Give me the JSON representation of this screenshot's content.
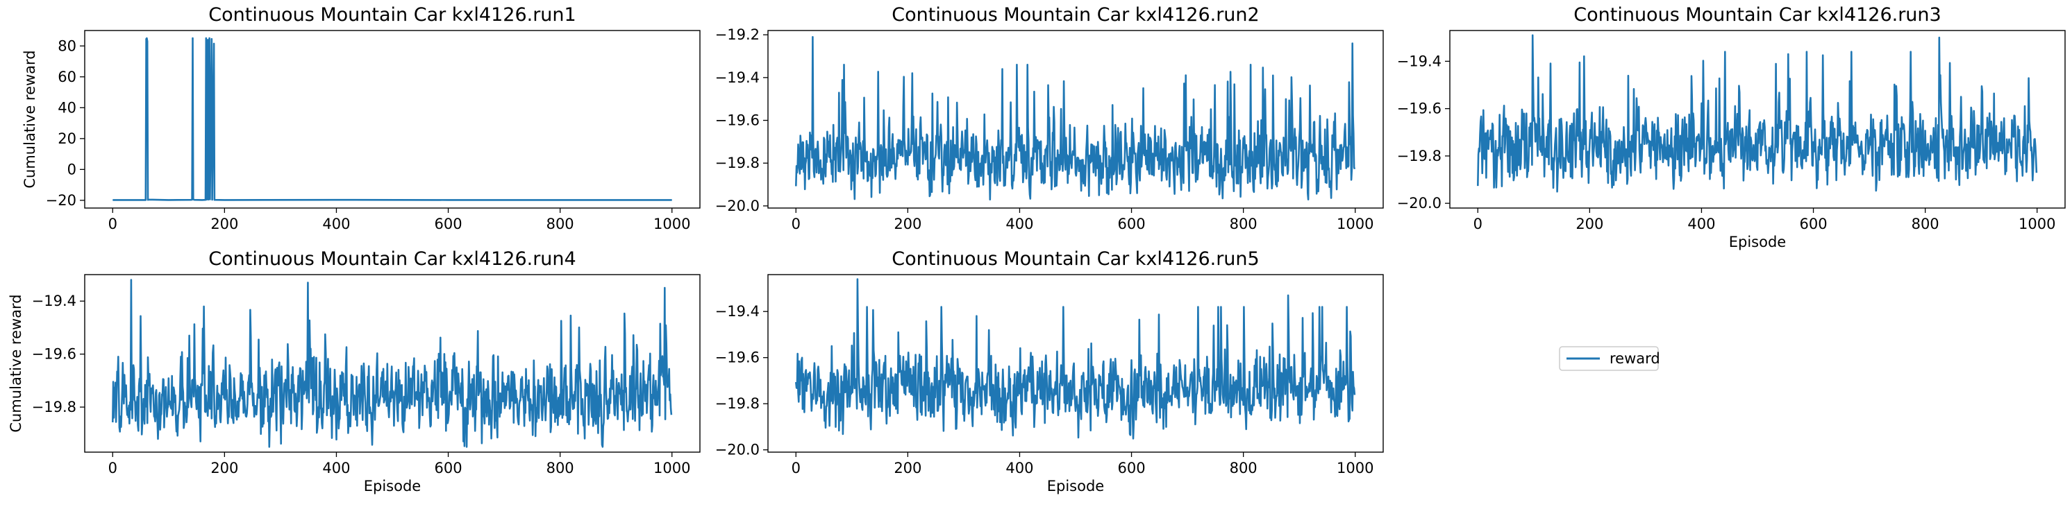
{
  "chart_data": [
    {
      "type": "line",
      "title": "Continuous Mountain Car kxl4126.run1",
      "xlabel": "",
      "ylabel": "Cumulative reward",
      "xlim": [
        -50,
        1050
      ],
      "ylim": [
        -25,
        90
      ],
      "xticks": [
        0,
        200,
        400,
        600,
        800,
        1000
      ],
      "yticks": [
        -20,
        0,
        20,
        40,
        60,
        80
      ],
      "ytick_labels": [
        "−20",
        "0",
        "20",
        "40",
        "60",
        "80"
      ],
      "series": [
        {
          "points": [
            [
              0,
              -19.8
            ],
            [
              50,
              -19.8
            ],
            [
              59,
              -19.8
            ],
            [
              60,
              84.5
            ],
            [
              61,
              85
            ],
            [
              62,
              83
            ],
            [
              63,
              -19.7
            ],
            [
              64,
              -19.5
            ],
            [
              100,
              -19.8
            ],
            [
              140,
              -19.7
            ],
            [
              142,
              -19.6
            ],
            [
              143,
              85
            ],
            [
              144,
              -19.4
            ],
            [
              146,
              -19.7
            ],
            [
              160,
              -19.8
            ],
            [
              166,
              -19.7
            ],
            [
              167,
              85
            ],
            [
              168,
              -19.5
            ],
            [
              170,
              84
            ],
            [
              171,
              -19.5
            ],
            [
              173,
              85
            ],
            [
              174,
              -19.4
            ],
            [
              177,
              84.5
            ],
            [
              178,
              -19.6
            ],
            [
              181,
              81.5
            ],
            [
              182,
              -19.7
            ],
            [
              200,
              -19.8
            ],
            [
              400,
              -19.7
            ],
            [
              600,
              -19.8
            ],
            [
              800,
              -19.8
            ],
            [
              1000,
              -19.8
            ]
          ]
        }
      ]
    },
    {
      "type": "line",
      "title": "Continuous Mountain Car kxl4126.run2",
      "xlabel": "",
      "ylabel": "",
      "xlim": [
        -50,
        1050
      ],
      "ylim": [
        -20.01,
        -19.18
      ],
      "xticks": [
        0,
        200,
        400,
        600,
        800,
        1000
      ],
      "yticks": [
        -20.0,
        -19.8,
        -19.6,
        -19.4,
        -19.2
      ],
      "ytick_labels": [
        "−20.0",
        "−19.8",
        "−19.6",
        "−19.4",
        "−19.2"
      ],
      "series": [
        {
          "mean": -19.78,
          "amp": 0.14,
          "min": -19.97,
          "max": -19.34,
          "seed": 12,
          "n": 1000,
          "spikes": [
            [
              30,
              -19.21
            ],
            [
              395,
              -19.34
            ],
            [
              853,
              -19.39
            ],
            [
              995,
              -19.24
            ]
          ]
        }
      ]
    },
    {
      "type": "line",
      "title": "Continuous Mountain Car kxl4126.run3",
      "xlabel": "Episode",
      "ylabel": "",
      "xlim": [
        -50,
        1050
      ],
      "ylim": [
        -20.02,
        -19.27
      ],
      "xticks": [
        0,
        200,
        400,
        600,
        800,
        1000
      ],
      "yticks": [
        -20.0,
        -19.8,
        -19.6,
        -19.4
      ],
      "ytick_labels": [
        "−20.0",
        "−19.8",
        "−19.6",
        "−19.4"
      ],
      "series": [
        {
          "mean": -19.76,
          "amp": 0.14,
          "min": -19.99,
          "max": -19.36,
          "seed": 31,
          "n": 1000,
          "spikes": [
            [
              98,
              -19.29
            ],
            [
              555,
              -19.37
            ],
            [
              825,
              -19.3
            ]
          ]
        }
      ]
    },
    {
      "type": "line",
      "title": "Continuous Mountain Car kxl4126.run4",
      "xlabel": "Episode",
      "ylabel": "Cumulative reward",
      "xlim": [
        -50,
        1050
      ],
      "ylim": [
        -19.97,
        -19.3
      ],
      "xticks": [
        0,
        200,
        400,
        600,
        800,
        1000
      ],
      "yticks": [
        -19.8,
        -19.6,
        -19.4
      ],
      "ytick_labels": [
        "−19.8",
        "−19.6",
        "−19.4"
      ],
      "series": [
        {
          "mean": -19.76,
          "amp": 0.13,
          "min": -19.95,
          "max": -19.42,
          "seed": 47,
          "n": 1000,
          "spikes": [
            [
              33,
              -19.32
            ],
            [
              349,
              -19.33
            ],
            [
              987,
              -19.35
            ]
          ]
        }
      ]
    },
    {
      "type": "line",
      "title": "Continuous Mountain Car kxl4126.run5",
      "xlabel": "Episode",
      "ylabel": "",
      "xlim": [
        -50,
        1050
      ],
      "ylim": [
        -20.01,
        -19.24
      ],
      "xticks": [
        0,
        200,
        400,
        600,
        800,
        1000
      ],
      "yticks": [
        -20.0,
        -19.8,
        -19.6,
        -19.4
      ],
      "ytick_labels": [
        "−20.0",
        "−19.8",
        "−19.6",
        "−19.4"
      ],
      "series": [
        {
          "mean": -19.74,
          "amp": 0.14,
          "min": -19.97,
          "max": -19.38,
          "seed": 83,
          "n": 1000,
          "spikes": [
            [
              110,
              -19.26
            ],
            [
              880,
              -19.33
            ]
          ]
        }
      ]
    }
  ],
  "legend": {
    "label": "reward",
    "color": "#1f77b4"
  },
  "line_color": "#1f77b4"
}
